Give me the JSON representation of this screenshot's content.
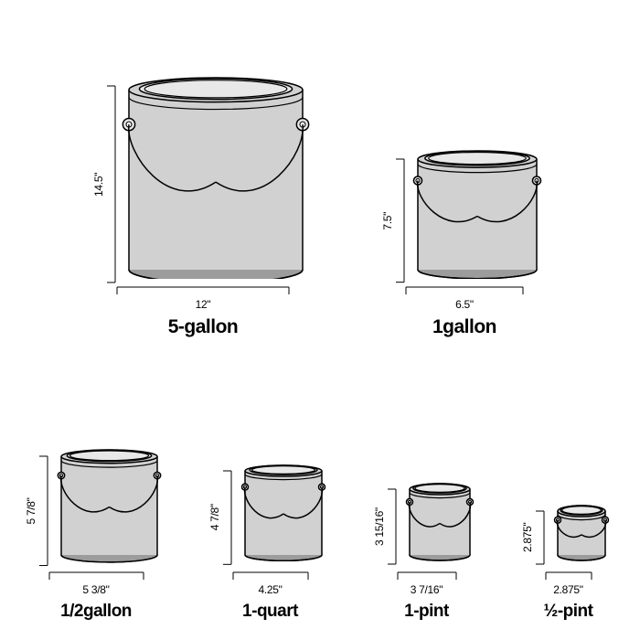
{
  "colors": {
    "bg": "#ffffff",
    "stroke": "#000000",
    "fill_body": "#d1d1d1",
    "fill_top": "#e8e8e8",
    "fill_bottom": "#9c9c9c",
    "tick": "#000000"
  },
  "stroke_width": 1.5,
  "rows": [
    {
      "gap": 70,
      "items": [
        {
          "name": "5-gallon",
          "h": "14.5\"",
          "w": "12\"",
          "can_w": 190,
          "can_h": 210,
          "name_fs": 21
        },
        {
          "name": "1gallon",
          "h": "7.5\"",
          "w": "6.5\"",
          "can_w": 130,
          "can_h": 130,
          "name_fs": 21
        }
      ]
    },
    {
      "gap": 40,
      "items": [
        {
          "name": "1/2gallon",
          "h": "5 7/8\"",
          "w": "5 3/8\"",
          "can_w": 105,
          "can_h": 115,
          "name_fs": 19
        },
        {
          "name": "1-quart",
          "h": "4 7/8\"",
          "w": "4.25\"",
          "can_w": 84,
          "can_h": 98,
          "name_fs": 19
        },
        {
          "name": "1-pint",
          "h": "3 15/16\"",
          "w": "3 7/16\"",
          "can_w": 66,
          "can_h": 78,
          "name_fs": 19
        },
        {
          "name": "½-pint",
          "h": "2.875\"",
          "w": "2.875\"",
          "can_w": 52,
          "can_h": 54,
          "name_fs": 19
        }
      ]
    }
  ]
}
